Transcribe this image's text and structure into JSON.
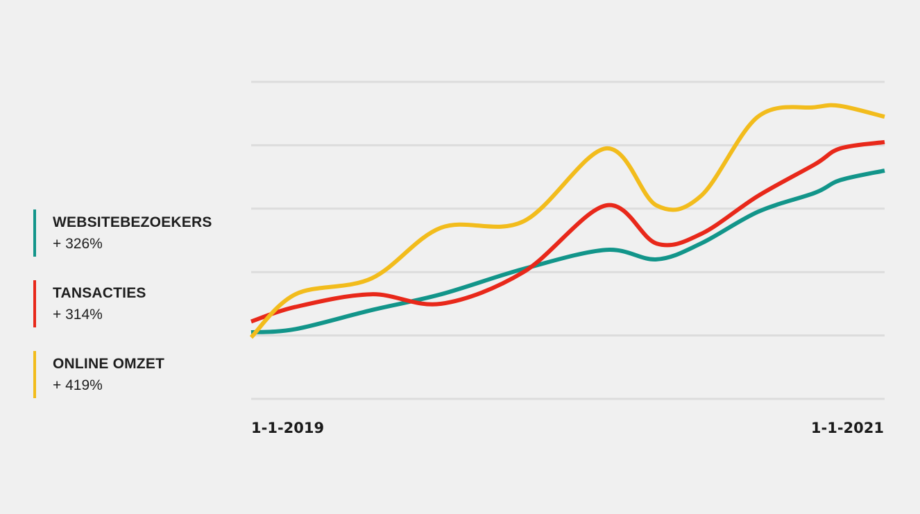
{
  "chart_data": {
    "type": "line",
    "title": "",
    "xlabel": "",
    "ylabel": "",
    "x_tick_labels": [
      "1-1-2019",
      "1-1-2021"
    ],
    "x": [
      0,
      0.07,
      0.19,
      0.3,
      0.43,
      0.56,
      0.64,
      0.71,
      0.8,
      0.89,
      0.93,
      1.0
    ],
    "ylim": [
      0,
      5
    ],
    "grid": true,
    "legend_position": "left",
    "series": [
      {
        "name": "WEBSITEBEZOEKERS",
        "change": "+ 326%",
        "color": "#12958a",
        "values": [
          1.05,
          1.1,
          1.4,
          1.65,
          2.05,
          2.35,
          2.2,
          2.45,
          2.95,
          3.25,
          3.45,
          3.6
        ]
      },
      {
        "name": "TANSACTIES",
        "change": "+ 314%",
        "color": "#e8281a",
        "values": [
          1.22,
          1.45,
          1.65,
          1.5,
          2.0,
          3.05,
          2.45,
          2.6,
          3.2,
          3.7,
          3.95,
          4.05
        ]
      },
      {
        "name": "ONLINE OMZET",
        "change": "+ 419%",
        "color": "#f2bc1c",
        "values": [
          0.97,
          1.65,
          1.9,
          2.7,
          2.8,
          3.95,
          3.05,
          3.2,
          4.45,
          4.6,
          4.62,
          4.45
        ]
      }
    ]
  }
}
